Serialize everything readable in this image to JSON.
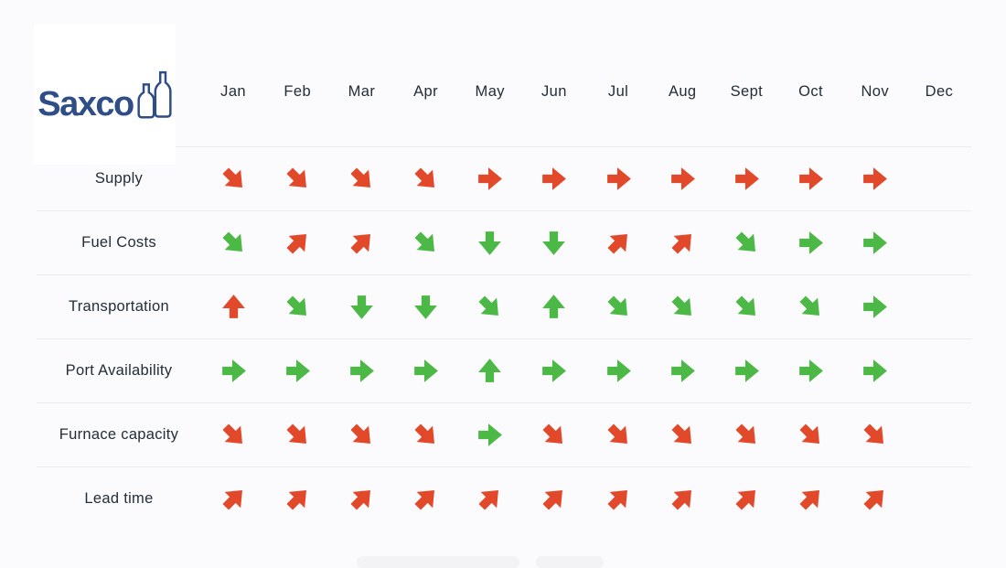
{
  "logo": {
    "text": "Saxco",
    "color": "#2f4d87"
  },
  "colors": {
    "red": "#e2482a",
    "green": "#4cb845",
    "text": "#232e39",
    "divider": "#ebebee",
    "background": "#fbfafc",
    "card": "#ffffff"
  },
  "chart_data": {
    "type": "table",
    "title": "",
    "columns": [
      "Jan",
      "Feb",
      "Mar",
      "Apr",
      "May",
      "Jun",
      "Jul",
      "Aug",
      "Sept",
      "Oct",
      "Nov",
      "Dec"
    ],
    "rows": [
      {
        "label": "Supply",
        "cells": [
          {
            "direction": "down-right",
            "color": "red"
          },
          {
            "direction": "down-right",
            "color": "red"
          },
          {
            "direction": "down-right",
            "color": "red"
          },
          {
            "direction": "down-right",
            "color": "red"
          },
          {
            "direction": "right",
            "color": "red"
          },
          {
            "direction": "right",
            "color": "red"
          },
          {
            "direction": "right",
            "color": "red"
          },
          {
            "direction": "right",
            "color": "red"
          },
          {
            "direction": "right",
            "color": "red"
          },
          {
            "direction": "right",
            "color": "red"
          },
          {
            "direction": "right",
            "color": "red"
          },
          null
        ]
      },
      {
        "label": "Fuel Costs",
        "cells": [
          {
            "direction": "down-right",
            "color": "green"
          },
          {
            "direction": "up-right",
            "color": "red"
          },
          {
            "direction": "up-right",
            "color": "red"
          },
          {
            "direction": "down-right",
            "color": "green"
          },
          {
            "direction": "down",
            "color": "green"
          },
          {
            "direction": "down",
            "color": "green"
          },
          {
            "direction": "up-right",
            "color": "red"
          },
          {
            "direction": "up-right",
            "color": "red"
          },
          {
            "direction": "down-right",
            "color": "green"
          },
          {
            "direction": "right",
            "color": "green"
          },
          {
            "direction": "right",
            "color": "green"
          },
          null
        ]
      },
      {
        "label": "Transportation",
        "cells": [
          {
            "direction": "up",
            "color": "red"
          },
          {
            "direction": "down-right",
            "color": "green"
          },
          {
            "direction": "down",
            "color": "green"
          },
          {
            "direction": "down",
            "color": "green"
          },
          {
            "direction": "down-right",
            "color": "green"
          },
          {
            "direction": "up",
            "color": "green"
          },
          {
            "direction": "down-right",
            "color": "green"
          },
          {
            "direction": "down-right",
            "color": "green"
          },
          {
            "direction": "down-right",
            "color": "green"
          },
          {
            "direction": "down-right",
            "color": "green"
          },
          {
            "direction": "right",
            "color": "green"
          },
          null
        ]
      },
      {
        "label": "Port Availability",
        "cells": [
          {
            "direction": "right",
            "color": "green"
          },
          {
            "direction": "right",
            "color": "green"
          },
          {
            "direction": "right",
            "color": "green"
          },
          {
            "direction": "right",
            "color": "green"
          },
          {
            "direction": "up",
            "color": "green"
          },
          {
            "direction": "right",
            "color": "green"
          },
          {
            "direction": "right",
            "color": "green"
          },
          {
            "direction": "right",
            "color": "green"
          },
          {
            "direction": "right",
            "color": "green"
          },
          {
            "direction": "right",
            "color": "green"
          },
          {
            "direction": "right",
            "color": "green"
          },
          null
        ]
      },
      {
        "label": "Furnace capacity",
        "cells": [
          {
            "direction": "down-right",
            "color": "red"
          },
          {
            "direction": "down-right",
            "color": "red"
          },
          {
            "direction": "down-right",
            "color": "red"
          },
          {
            "direction": "down-right",
            "color": "red"
          },
          {
            "direction": "right",
            "color": "green"
          },
          {
            "direction": "down-right",
            "color": "red"
          },
          {
            "direction": "down-right",
            "color": "red"
          },
          {
            "direction": "down-right",
            "color": "red"
          },
          {
            "direction": "down-right",
            "color": "red"
          },
          {
            "direction": "down-right",
            "color": "red"
          },
          {
            "direction": "down-right",
            "color": "red"
          },
          null
        ]
      },
      {
        "label": "Lead time",
        "cells": [
          {
            "direction": "up-right",
            "color": "red"
          },
          {
            "direction": "up-right",
            "color": "red"
          },
          {
            "direction": "up-right",
            "color": "red"
          },
          {
            "direction": "up-right",
            "color": "red"
          },
          {
            "direction": "up-right",
            "color": "red"
          },
          {
            "direction": "up-right",
            "color": "red"
          },
          {
            "direction": "up-right",
            "color": "red"
          },
          {
            "direction": "up-right",
            "color": "red"
          },
          {
            "direction": "up-right",
            "color": "red"
          },
          {
            "direction": "up-right",
            "color": "red"
          },
          {
            "direction": "up-right",
            "color": "red"
          },
          null
        ]
      }
    ]
  }
}
